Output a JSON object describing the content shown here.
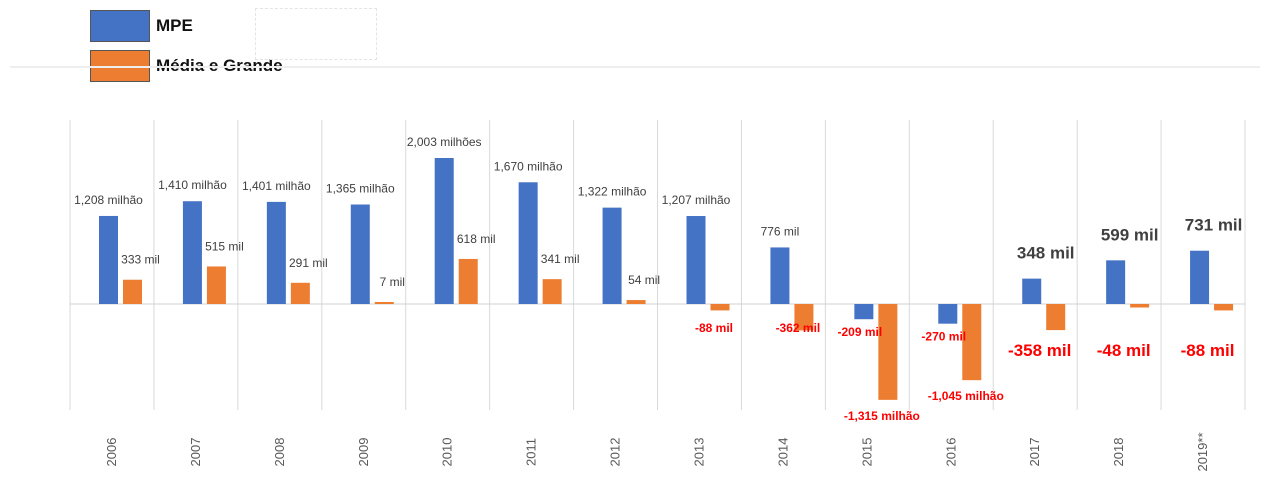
{
  "legend": {
    "series0": "MPE",
    "series1": "Média e Grande"
  },
  "colors": {
    "mpe": "#4472C4",
    "media_grande": "#ED7D31",
    "label_positive": "#404040",
    "label_negative": "#FF0000",
    "grid": "#d9d9d9"
  },
  "chart_data": {
    "type": "bar",
    "title": "",
    "xlabel": "",
    "ylabel": "",
    "categories": [
      "2006",
      "2007",
      "2008",
      "2009",
      "2010",
      "2011",
      "2012",
      "2013",
      "2014",
      "2015",
      "2016",
      "2017",
      "2018",
      "2019**"
    ],
    "series": [
      {
        "name": "MPE",
        "values": [
          1208,
          1410,
          1401,
          1365,
          2003,
          1670,
          1322,
          1207,
          776,
          -209,
          -270,
          348,
          599,
          731
        ],
        "labels": [
          "1,208 milhão",
          "1,410 milhão",
          "1,401 milhão",
          "1,365 milhão",
          "2,003 milhões",
          "1,670 milhão",
          "1,322 milhão",
          "1,207 milhão",
          "776 mil",
          "-209 mil",
          "-270 mil",
          "348 mil",
          "599 mil",
          "731 mil"
        ]
      },
      {
        "name": "Média e Grande",
        "values": [
          333,
          515,
          291,
          7,
          618,
          341,
          54,
          -88,
          -362,
          -1315,
          -1045,
          -358,
          -48,
          -88
        ],
        "labels": [
          "333 mil",
          "515 mil",
          "291 mil",
          "7 mil",
          "618 mil",
          "341 mil",
          "54 mil",
          "-88 mil",
          "-362 mil",
          "-1,315 milhão",
          "-1,045 milhão",
          "-358 mil",
          "-48 mil",
          "-88 mil"
        ]
      }
    ],
    "unit": "mil",
    "grid": "vertical separators",
    "legend_position": "top-left",
    "ylim": [
      -1450,
      2200
    ]
  }
}
